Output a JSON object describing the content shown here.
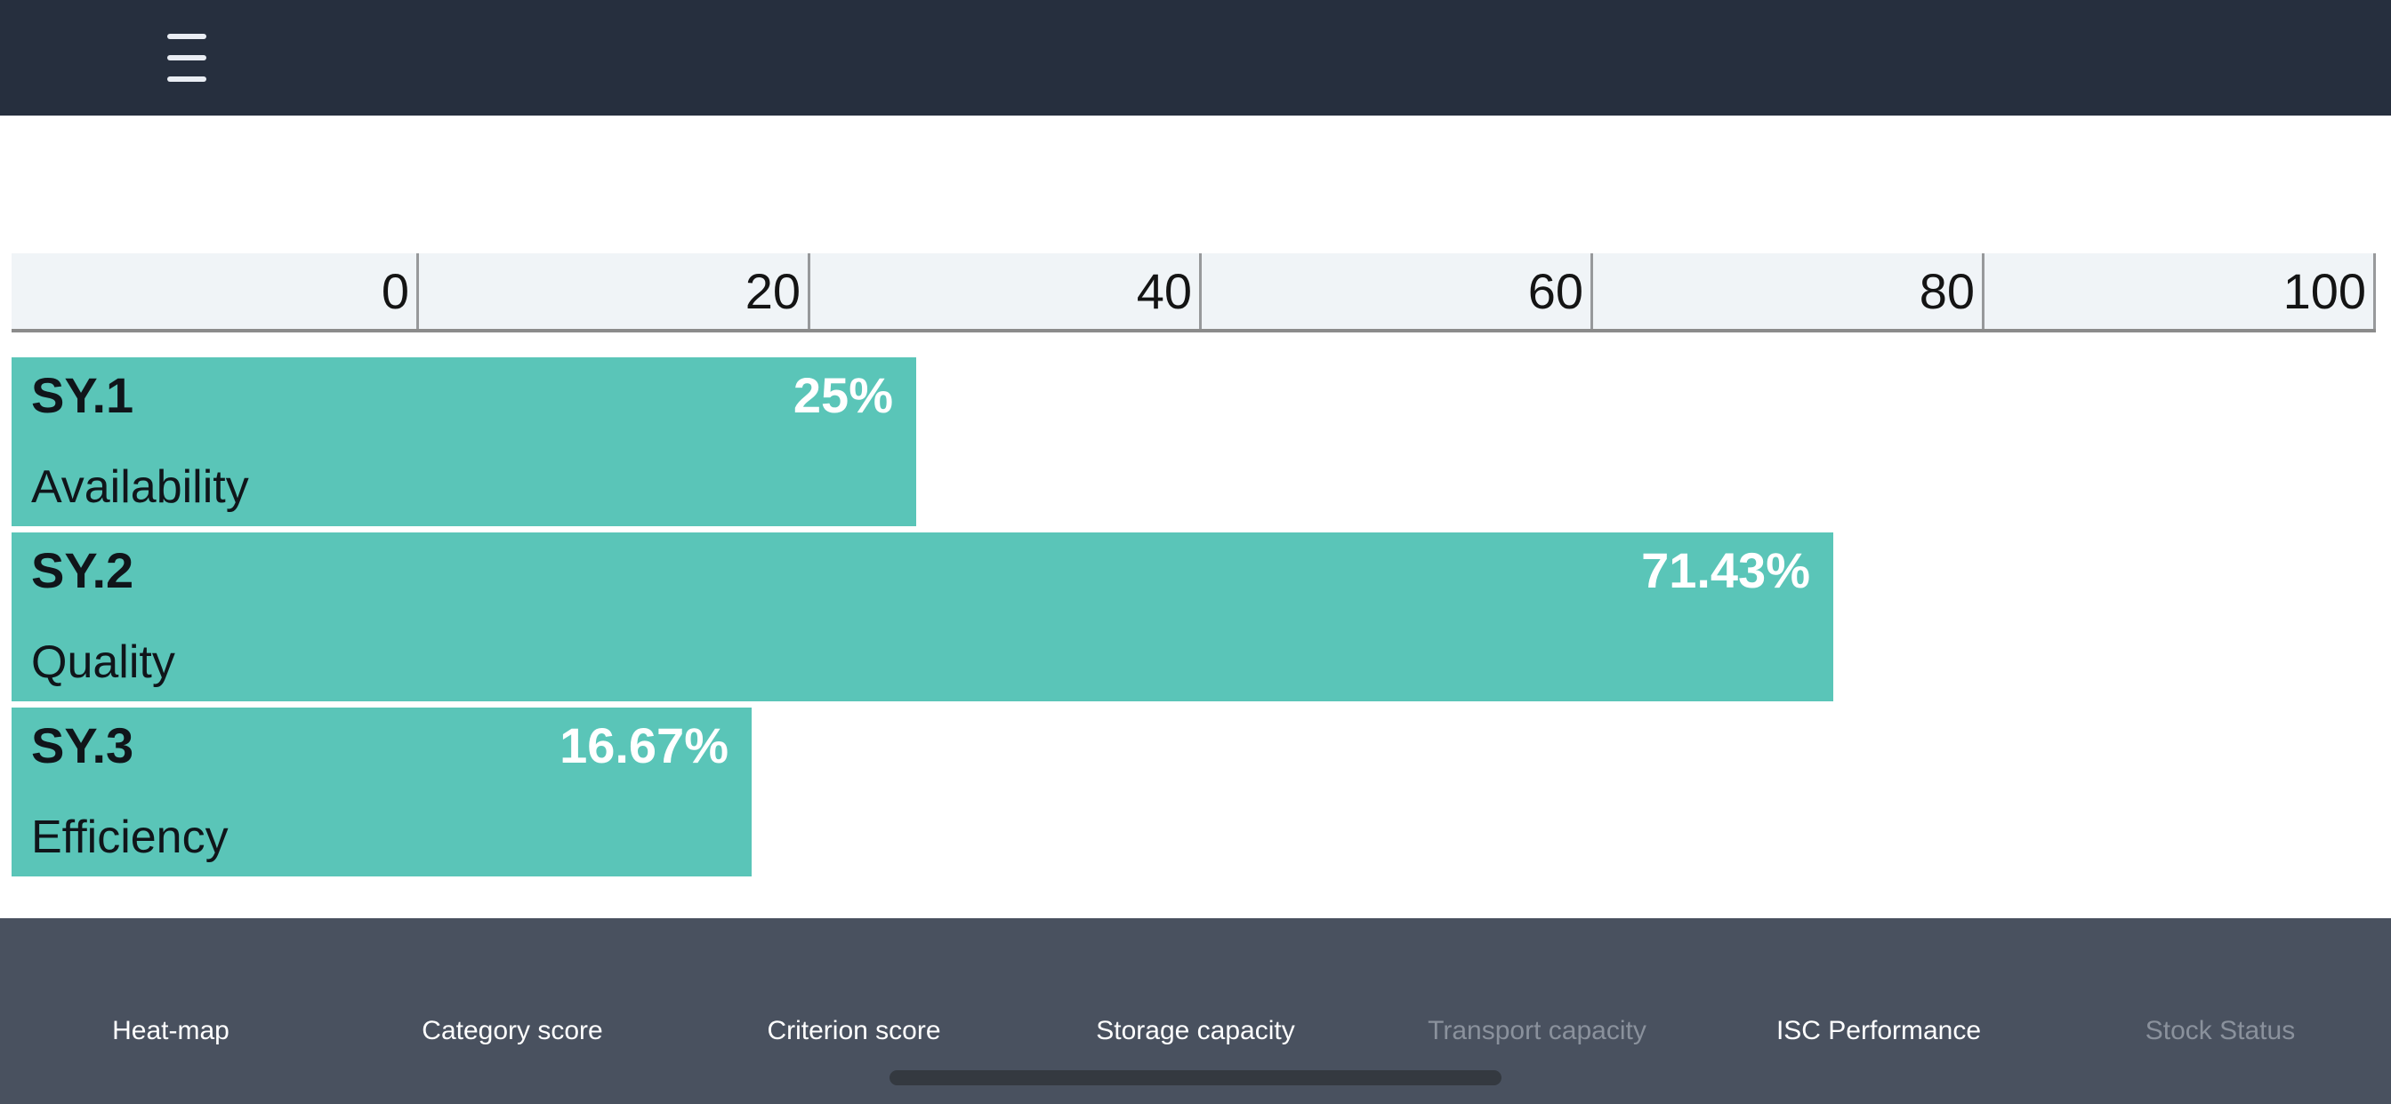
{
  "header": {
    "menu_icon": "hamburger-menu"
  },
  "chart_data": {
    "type": "bar",
    "orientation": "horizontal",
    "x_axis": {
      "position": "top",
      "range": [
        0,
        100
      ],
      "ticks": [
        "0",
        "20",
        "40",
        "60",
        "80",
        "100"
      ],
      "grid": "vertical-lines"
    },
    "bars": [
      {
        "code": "SY.1",
        "name": "Availability",
        "value": 25,
        "value_label": "25%"
      },
      {
        "code": "SY.2",
        "name": "Quality",
        "value": 71.43,
        "value_label": "71.43%"
      },
      {
        "code": "SY.3",
        "name": "Efficiency",
        "value": 16.67,
        "value_label": "16.67%"
      }
    ],
    "legend": "none",
    "bar_color": "#5AC5B8"
  },
  "tab_bar": {
    "tabs": [
      {
        "label": "Heat-map",
        "enabled": true
      },
      {
        "label": "Category score",
        "enabled": true
      },
      {
        "label": "Criterion score",
        "enabled": true
      },
      {
        "label": "Storage capacity",
        "enabled": true
      },
      {
        "label": "Transport capacity",
        "enabled": false
      },
      {
        "label": "ISC Performance",
        "enabled": true
      },
      {
        "label": "Stock Status",
        "enabled": false
      }
    ]
  },
  "colors": {
    "header_bg": "#262F3E",
    "footer_bg": "#49515F",
    "bar": "#5AC5B8",
    "axis_bg": "#F0F4F7",
    "axis_line": "#97999B",
    "tab_disabled": "#8A919C",
    "value_text": "#FFFFFF"
  }
}
